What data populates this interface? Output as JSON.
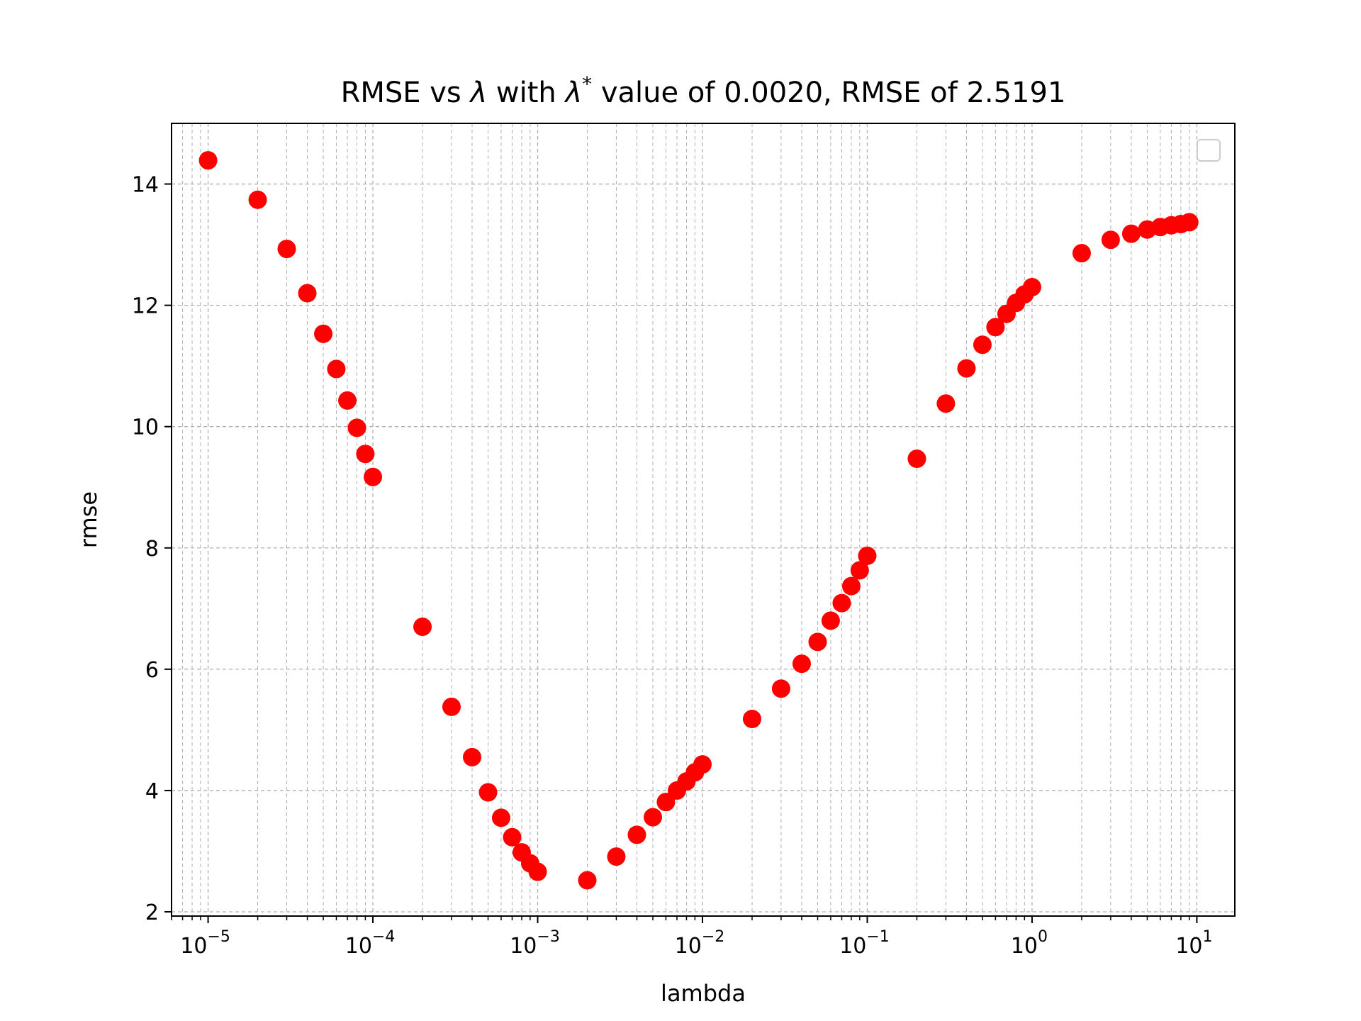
{
  "chart_data": {
    "type": "scatter",
    "title": {
      "prefix": "RMSE vs ",
      "lambda_symbol": "λ",
      "middle": " with ",
      "star": "*",
      "suffix": "  value of 0.0020, RMSE of 2.5191"
    },
    "xlabel": "lambda",
    "ylabel": "rmse",
    "x_scale": "log",
    "x_tick_exponents": [
      "−5",
      "−4",
      "−3",
      "−2",
      "−1",
      "0",
      "1"
    ],
    "y_ticks": [
      "2",
      "4",
      "6",
      "8",
      "10",
      "12",
      "14"
    ],
    "xlim": [
      6e-06,
      17
    ],
    "ylim": [
      1.93,
      15.0
    ],
    "grid": true,
    "legend": "top-right (empty)",
    "marker_color": "#ff0000",
    "points": [
      [
        1e-05,
        14.39
      ],
      [
        2e-05,
        13.74
      ],
      [
        3e-05,
        12.93
      ],
      [
        4e-05,
        12.2
      ],
      [
        5e-05,
        11.53
      ],
      [
        6e-05,
        10.95
      ],
      [
        7e-05,
        10.43
      ],
      [
        8e-05,
        9.98
      ],
      [
        9e-05,
        9.55
      ],
      [
        0.0001,
        9.17
      ],
      [
        0.0002,
        6.7
      ],
      [
        0.0003,
        5.38
      ],
      [
        0.0004,
        4.55
      ],
      [
        0.0005,
        3.97
      ],
      [
        0.0006,
        3.55
      ],
      [
        0.0007,
        3.23
      ],
      [
        0.0008,
        2.98
      ],
      [
        0.0009,
        2.8
      ],
      [
        0.001,
        2.66
      ],
      [
        0.002,
        2.52
      ],
      [
        0.003,
        2.91
      ],
      [
        0.004,
        3.27
      ],
      [
        0.005,
        3.56
      ],
      [
        0.006,
        3.81
      ],
      [
        0.007,
        4.0
      ],
      [
        0.008,
        4.15
      ],
      [
        0.009,
        4.3
      ],
      [
        0.01,
        4.43
      ],
      [
        0.02,
        5.18
      ],
      [
        0.03,
        5.68
      ],
      [
        0.04,
        6.09
      ],
      [
        0.05,
        6.45
      ],
      [
        0.06,
        6.8
      ],
      [
        0.07,
        7.09
      ],
      [
        0.08,
        7.37
      ],
      [
        0.09,
        7.63
      ],
      [
        0.1,
        7.87
      ],
      [
        0.2,
        9.47
      ],
      [
        0.3,
        10.38
      ],
      [
        0.4,
        10.96
      ],
      [
        0.5,
        11.35
      ],
      [
        0.6,
        11.64
      ],
      [
        0.7,
        11.86
      ],
      [
        0.8,
        12.04
      ],
      [
        0.9,
        12.18
      ],
      [
        1.0,
        12.3
      ],
      [
        2.0,
        12.86
      ],
      [
        3.0,
        13.08
      ],
      [
        4.0,
        13.18
      ],
      [
        5.0,
        13.25
      ],
      [
        6.0,
        13.29
      ],
      [
        7.0,
        13.32
      ],
      [
        8.0,
        13.34
      ],
      [
        9.0,
        13.37
      ]
    ]
  }
}
